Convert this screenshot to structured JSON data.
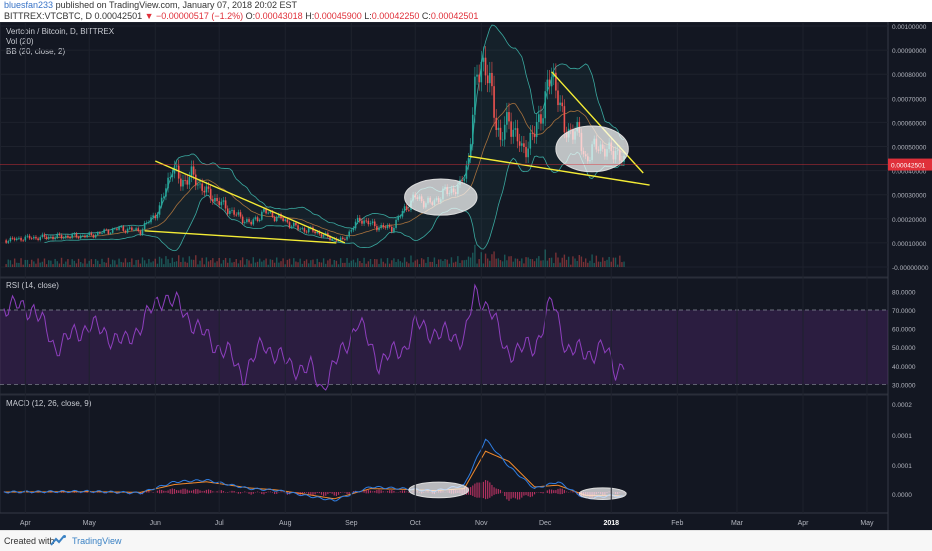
{
  "header": {
    "author": "bluesfan233",
    "published_text": "published on TradingView.com, January 07, 2018 20:02 EST",
    "symbol": "BITTREX:VTCBTC, D",
    "last": "0.00042501",
    "change": "▼ −0.00000517 (−1.2%)",
    "o_label": "O:",
    "o": "0.00043018",
    "h_label": "H:",
    "h": "0.00045900",
    "l_label": "L:",
    "l": "0.00042250",
    "c_label": "C:",
    "c": "0.00042501"
  },
  "footer": {
    "created_with": "Created with",
    "brand": "TradingView"
  },
  "colors": {
    "background": "#131722",
    "up": "#26a69a",
    "down": "#ef5350",
    "bb_band": "#3aa9a0",
    "bb_basis": "#a5703c",
    "trendline": "#f4ec35",
    "rsi": "#8e3fbe",
    "macd": "#2f7de1",
    "signal": "#f18a2c",
    "histogram": "#d8386f",
    "price_badge": "#e0303a"
  },
  "chart_data": [
    {
      "type": "candlestick",
      "title": "Vertcoin / Bitcoin, D, BITTREX",
      "indicators": [
        "Vol (20)",
        "BB (20, close, 2)"
      ],
      "price_axis_ticks": [
        "0.00100000",
        "0.00090000",
        "0.00080000",
        "0.00070000",
        "0.00060000",
        "0.00050000",
        "0.00040000",
        "0.00030000",
        "0.00020000",
        "0.00010000",
        "-0.00000000"
      ],
      "ylim": [
        0,
        0.001
      ],
      "last_price_label": "0.00042501",
      "x_tick_labels": [
        "Apr",
        "May",
        "Jun",
        "Jul",
        "Aug",
        "Sep",
        "Oct",
        "Nov",
        "Dec",
        "2018",
        "Feb",
        "Mar",
        "Apr",
        "May"
      ],
      "x_ticks": [
        "2017-04-01",
        "2017-05-01",
        "2017-06-01",
        "2017-07-01",
        "2017-08-01",
        "2017-09-01",
        "2017-10-01",
        "2017-11-01",
        "2017-12-01",
        "2018-01-01",
        "2018-02-01",
        "2018-03-01",
        "2018-04-01",
        "2018-05-01"
      ],
      "xlim": [
        "2017-03-22",
        "2018-05-09"
      ],
      "close_series": [
        [
          "2017-03-22",
          0.00011
        ],
        [
          "2017-04-01",
          0.00012
        ],
        [
          "2017-04-15",
          0.000125
        ],
        [
          "2017-05-01",
          0.00013
        ],
        [
          "2017-05-15",
          0.00016
        ],
        [
          "2017-05-25",
          0.00015
        ],
        [
          "2017-06-03",
          0.00024
        ],
        [
          "2017-06-09",
          0.00042
        ],
        [
          "2017-06-13",
          0.00035
        ],
        [
          "2017-06-18",
          0.00038
        ],
        [
          "2017-06-25",
          0.00031
        ],
        [
          "2017-07-02",
          0.00026
        ],
        [
          "2017-07-10",
          0.00021
        ],
        [
          "2017-07-16",
          0.00018
        ],
        [
          "2017-07-22",
          0.00023
        ],
        [
          "2017-07-30",
          0.0002
        ],
        [
          "2017-08-07",
          0.00016
        ],
        [
          "2017-08-14",
          0.00015
        ],
        [
          "2017-08-22",
          0.00012
        ],
        [
          "2017-08-28",
          0.00011
        ],
        [
          "2017-09-05",
          0.0002
        ],
        [
          "2017-09-12",
          0.00017
        ],
        [
          "2017-09-20",
          0.00016
        ],
        [
          "2017-09-26",
          0.00024
        ],
        [
          "2017-10-01",
          0.00029
        ],
        [
          "2017-10-08",
          0.00026
        ],
        [
          "2017-10-15",
          0.00031
        ],
        [
          "2017-10-22",
          0.00033
        ],
        [
          "2017-10-26",
          0.00045
        ],
        [
          "2017-10-29",
          0.00072
        ],
        [
          "2017-11-01",
          0.00088
        ],
        [
          "2017-11-05",
          0.00075
        ],
        [
          "2017-11-10",
          0.00052
        ],
        [
          "2017-11-14",
          0.00062
        ],
        [
          "2017-11-20",
          0.00048
        ],
        [
          "2017-11-26",
          0.00055
        ],
        [
          "2017-12-01",
          0.0007
        ],
        [
          "2017-12-04",
          0.00079
        ],
        [
          "2017-12-07",
          0.00074
        ],
        [
          "2017-12-10",
          0.00055
        ],
        [
          "2017-12-15",
          0.00058
        ],
        [
          "2017-12-20",
          0.00045
        ],
        [
          "2017-12-26",
          0.00051
        ],
        [
          "2017-12-31",
          0.00047
        ],
        [
          "2018-01-03",
          0.00049
        ],
        [
          "2018-01-07",
          0.00042501
        ]
      ],
      "trendlines": [
        {
          "from": [
            "2017-06-01",
            0.00044
          ],
          "to": [
            "2017-08-29",
            0.0001
          ]
        },
        {
          "from": [
            "2017-05-27",
            0.00015
          ],
          "to": [
            "2017-08-25",
            0.0001
          ]
        },
        {
          "from": [
            "2017-10-26",
            0.00046
          ],
          "to": [
            "2018-01-19",
            0.00034
          ]
        },
        {
          "from": [
            "2017-12-04",
            0.00081
          ],
          "to": [
            "2018-01-16",
            0.00039
          ]
        }
      ],
      "highlight_ellipses": [
        {
          "center": [
            "2017-10-13",
            0.00029
          ],
          "semi_axis_days": 17,
          "semi_axis_value": 7.5e-05
        },
        {
          "center": [
            "2017-12-23",
            0.00049
          ],
          "semi_axis_days": 17,
          "semi_axis_value": 9.5e-05
        }
      ]
    },
    {
      "type": "line",
      "title": "RSI (14, close)",
      "y_ticks": [
        "80.0000",
        "70.0000",
        "60.0000",
        "50.0000",
        "40.0000",
        "30.0000"
      ],
      "ylim": [
        27,
        84
      ],
      "bands": [
        30,
        70
      ],
      "x": [
        "2017-03-22",
        "2017-04-05",
        "2017-04-15",
        "2017-05-01",
        "2017-05-18",
        "2017-06-05",
        "2017-06-12",
        "2017-06-25",
        "2017-07-05",
        "2017-07-12",
        "2017-07-22",
        "2017-08-03",
        "2017-08-13",
        "2017-08-18",
        "2017-08-28",
        "2017-09-04",
        "2017-09-14",
        "2017-09-26",
        "2017-10-01",
        "2017-10-12",
        "2017-10-24",
        "2017-10-29",
        "2017-11-05",
        "2017-11-12",
        "2017-11-26",
        "2017-12-04",
        "2017-12-11",
        "2017-12-20",
        "2017-12-28",
        "2018-01-03",
        "2018-01-07"
      ],
      "values": [
        72,
        71,
        50,
        62,
        52,
        78,
        72,
        55,
        47,
        35,
        52,
        40,
        38,
        28,
        48,
        64,
        42,
        50,
        62,
        57,
        55,
        78,
        72,
        48,
        50,
        75,
        50,
        46,
        50,
        38,
        42
      ]
    },
    {
      "type": "line",
      "title": "MACD (12, 26, close, 9)",
      "y_ticks": [
        "0.0002",
        "0.0001",
        "0.0001",
        "0.0000"
      ],
      "x": [
        "2017-03-22",
        "2017-05-01",
        "2017-05-25",
        "2017-06-10",
        "2017-06-25",
        "2017-07-15",
        "2017-07-28",
        "2017-08-10",
        "2017-08-24",
        "2017-09-10",
        "2017-09-25",
        "2017-10-10",
        "2017-10-24",
        "2017-11-03",
        "2017-11-14",
        "2017-11-26",
        "2017-12-07",
        "2017-12-20",
        "2018-01-01",
        "2018-01-07"
      ],
      "series": [
        {
          "name": "MACD",
          "values": [
            0,
            2e-06,
            -3e-06,
            3e-05,
            3.5e-05,
            1e-05,
            5e-06,
            -1e-05,
            -2.5e-05,
            1.5e-05,
            1e-05,
            3e-06,
            2e-05,
            0.000155,
            7.5e-05,
            1e-05,
            3e-05,
            -2e-05,
            -1e-05,
            -1.5e-05
          ]
        },
        {
          "name": "Signal",
          "values": [
            0,
            1e-06,
            -1e-06,
            2.2e-05,
            3e-05,
            1.2e-05,
            6e-06,
            -6e-06,
            -2e-05,
            1e-05,
            8e-06,
            4e-06,
            1e-05,
            0.00012,
            9e-05,
            1.5e-05,
            2e-05,
            -1e-05,
            -1e-05,
            -1.2e-05
          ]
        }
      ],
      "highlight_ellipses": [
        {
          "center": [
            "2017-10-12",
            6e-06
          ],
          "semi_axis_days": 14,
          "semi_axis_value": 2.3e-05
        },
        {
          "center": [
            "2017-12-28",
            -5e-06
          ],
          "semi_axis_days": 11,
          "semi_axis_value": 1.7e-05
        }
      ]
    }
  ]
}
